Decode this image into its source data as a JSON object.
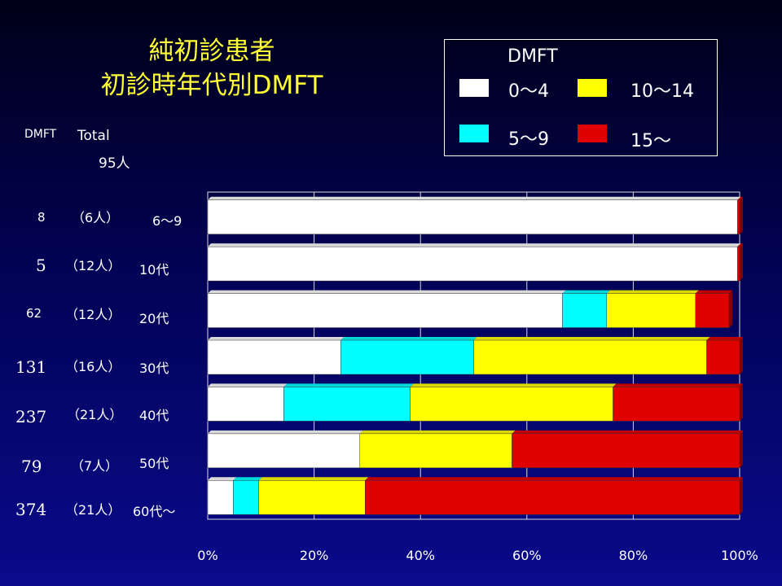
{
  "title": {
    "line1": "純初診患者",
    "line2": "初診時年代別DMFT"
  },
  "header": {
    "dmft_label": "DMFT",
    "total_label": "Total",
    "total_value": "95人"
  },
  "legend": {
    "title": "DMFT",
    "items": [
      {
        "label": "0～4",
        "color": "#ffffff"
      },
      {
        "label": "10～14",
        "color": "#ffff00"
      },
      {
        "label": "5～9",
        "color": "#00ffff"
      },
      {
        "label": "15～",
        "color": "#e00000"
      }
    ]
  },
  "rows": [
    {
      "dmft": "8",
      "count": "（6人）",
      "age": "6～9"
    },
    {
      "dmft": "5",
      "count": "（12人）",
      "age": "10代"
    },
    {
      "dmft": "62",
      "count": "（12人）",
      "age": "20代"
    },
    {
      "dmft": "131",
      "count": "（16人）",
      "age": "30代"
    },
    {
      "dmft": "237",
      "count": "（21人）",
      "age": "40代"
    },
    {
      "dmft": "79",
      "count": "（7人）",
      "age": "50代"
    },
    {
      "dmft": "374",
      "count": "（21人）",
      "age": "60代～"
    }
  ],
  "chart_data": {
    "type": "bar",
    "orientation": "horizontal",
    "stacked": true,
    "percent": true,
    "categories": [
      "6～9",
      "10代",
      "20代",
      "30代",
      "40代",
      "50代",
      "60代～"
    ],
    "series": [
      {
        "name": "0～4",
        "color": "#ffffff",
        "values": [
          99.6,
          99.6,
          66.7,
          25.0,
          14.3,
          28.6,
          4.8
        ]
      },
      {
        "name": "5～9",
        "color": "#00ffff",
        "values": [
          0,
          0,
          8.3,
          25.0,
          23.8,
          0,
          4.8
        ]
      },
      {
        "name": "10～14",
        "color": "#ffff00",
        "values": [
          0,
          0,
          16.7,
          43.8,
          38.1,
          28.6,
          20.0
        ]
      },
      {
        "name": "15～",
        "color": "#e00000",
        "values": [
          0.4,
          0.4,
          6.3,
          6.2,
          23.8,
          42.8,
          70.4
        ]
      }
    ],
    "xticks": [
      "0%",
      "20%",
      "40%",
      "60%",
      "80%",
      "100%"
    ],
    "xlim": [
      0,
      100
    ],
    "grid": true,
    "legend": "top-right"
  }
}
